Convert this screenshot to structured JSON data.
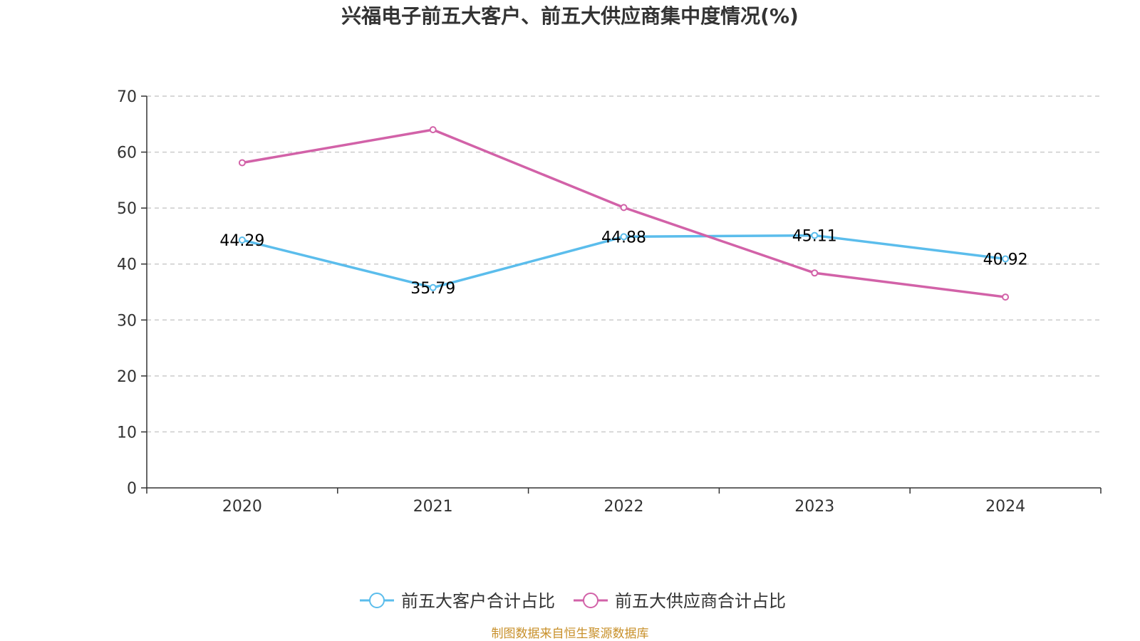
{
  "chart_data": {
    "type": "line",
    "title": "兴福电子前五大客户、前五大供应商集中度情况(%)",
    "categories": [
      "2020",
      "2021",
      "2022",
      "2023",
      "2024"
    ],
    "ylim": [
      0,
      70
    ],
    "yticks": [
      0,
      10,
      20,
      30,
      40,
      50,
      60,
      70
    ],
    "grid": true,
    "legend_position": "bottom",
    "series": [
      {
        "name": "前五大客户合计占比",
        "color": "#5bbdec",
        "values": [
          44.29,
          35.79,
          44.88,
          45.11,
          40.92
        ],
        "labels": [
          "44.29",
          "35.79",
          "44.88",
          "45.11",
          "40.92"
        ],
        "show_labels": true
      },
      {
        "name": "前五大供应商合计占比",
        "color": "#d262a8",
        "values": [
          58.1,
          64.0,
          50.1,
          38.4,
          34.1
        ],
        "show_labels": false
      }
    ]
  },
  "source_note": "制图数据来自恒生聚源数据库"
}
